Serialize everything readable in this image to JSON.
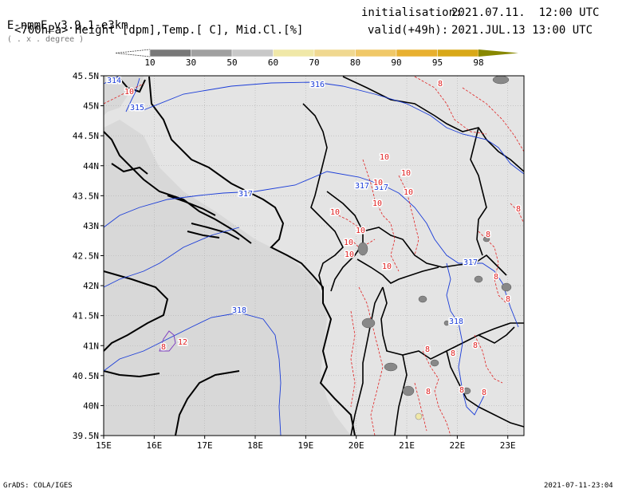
{
  "header": {
    "model_prefix": "E-nmmE_v3.9.1-e3km",
    "model_units": "( . x . degree )",
    "fields": "<700hPa> Height [dpm],Temp.[ C], Mid.Cl.[%]",
    "init_label": "initialisation:",
    "init_value": "2021.07.11.  12:00 UTC",
    "valid_label": "valid(+49h):",
    "valid_value": "2021.JUL.13 13:00 UTC"
  },
  "legend": {
    "labels": [
      "10",
      "30",
      "50",
      "60",
      "70",
      "80",
      "90",
      "95",
      "98"
    ],
    "colors": [
      "#505050",
      "#787878",
      "#a0a0a0",
      "#c8c8c8",
      "#f0e8a8",
      "#f0d890",
      "#f0c868",
      "#e8b030",
      "#d8a818",
      "#888800"
    ]
  },
  "map": {
    "lon_labels": [
      "15E",
      "16E",
      "17E",
      "18E",
      "19E",
      "20E",
      "21E",
      "22E",
      "23E"
    ],
    "lat_labels": [
      "45.5N",
      "45N",
      "44.5N",
      "44N",
      "43.5N",
      "43N",
      "42.5N",
      "42N",
      "41.5N",
      "41N",
      "40.5N",
      "40N",
      "39.5N"
    ],
    "height_contour_labels": [
      "314",
      "315",
      "316",
      "317",
      "318",
      "317",
      "317",
      "317",
      "318"
    ],
    "temp_contour_labels": [
      "10",
      "10",
      "10",
      "10",
      "10",
      "10",
      "10",
      "10",
      "10",
      "10",
      "10",
      "12",
      "8",
      "8",
      "8",
      "8",
      "8",
      "8",
      "8",
      "8",
      "8",
      "8",
      "8",
      "8"
    ],
    "colors": {
      "land": "#e4e4e4",
      "sea": "#d8d8d8",
      "height": "#1a3cd8",
      "temp": "#e02020",
      "coast": "#000000",
      "cloud": "#808080"
    }
  },
  "footer": {
    "left": "GrADS: COLA/IGES",
    "right": "2021-07-11-23:04"
  }
}
